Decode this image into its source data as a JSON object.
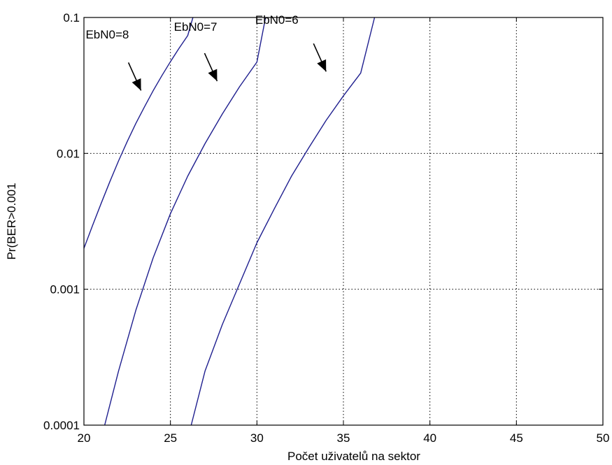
{
  "chart_data": {
    "type": "line",
    "title": "",
    "xlabel": "Počet uživatelů na sektor",
    "ylabel": "Pr(BER>0.001",
    "xlim": [
      20,
      50
    ],
    "ylim": [
      0.0001,
      0.1
    ],
    "yscale": "log",
    "grid": true,
    "line_color": "#1f1f8f",
    "x_ticks": [
      20,
      25,
      30,
      35,
      40,
      45,
      50
    ],
    "x_tick_labels": [
      "20",
      "25",
      "30",
      "35",
      "40",
      "45",
      "50"
    ],
    "y_ticks": [
      0.0001,
      0.001,
      0.01,
      0.1
    ],
    "y_tick_labels": [
      "0.0001",
      "0.001",
      "0.01",
      "0.1"
    ],
    "series": [
      {
        "x": [
          20,
          20.5,
          21,
          21.5,
          22,
          22.5,
          23,
          23.5,
          24,
          24.5,
          25,
          25.5,
          26,
          26.3
        ],
        "y": [
          0.002,
          0.00295,
          0.0043,
          0.0062,
          0.0088,
          0.0122,
          0.0166,
          0.022,
          0.0289,
          0.0372,
          0.0473,
          0.0594,
          0.0736,
          0.1
        ]
      },
      {
        "x": [
          21.2,
          22,
          23,
          24,
          25,
          26,
          27,
          28,
          29,
          30,
          30.5
        ],
        "y": [
          0.0001,
          0.00025,
          0.0007,
          0.0017,
          0.0036,
          0.0068,
          0.0118,
          0.0195,
          0.031,
          0.047,
          0.1
        ]
      },
      {
        "x": [
          26.2,
          27,
          28,
          29,
          30,
          31,
          32,
          33,
          34,
          35,
          36,
          36.8
        ],
        "y": [
          0.0001,
          0.00025,
          0.00055,
          0.0011,
          0.0022,
          0.0039,
          0.0068,
          0.011,
          0.0175,
          0.0265,
          0.039,
          0.1
        ]
      }
    ],
    "annotations": [
      {
        "text": "EbN0=8",
        "x": 20.1,
        "y": 0.07,
        "arrow_to": [
          23.3,
          0.029
        ]
      },
      {
        "text": "EbN0=7",
        "x": 25.2,
        "y": 0.08,
        "arrow_to": [
          27.7,
          0.034
        ]
      },
      {
        "text": "EbN0=6",
        "x": 29.9,
        "y": 0.09,
        "arrow_to": [
          34.0,
          0.04
        ]
      }
    ]
  }
}
